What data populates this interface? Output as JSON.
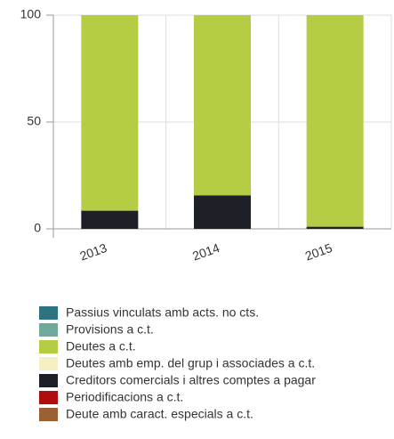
{
  "chart_data": {
    "type": "stacked_bar",
    "categories": [
      "2013",
      "2014",
      "2015"
    ],
    "series": [
      {
        "name": "Passius vinculats amb acts. no cts.",
        "color": "#2e7480",
        "values": [
          0,
          0,
          0
        ]
      },
      {
        "name": "Provisions a c.t.",
        "color": "#6fa99b",
        "values": [
          0,
          0,
          0
        ]
      },
      {
        "name": "Deutes a c.t.",
        "color": "#b5cc45",
        "values": [
          91.5,
          84.3,
          99
        ]
      },
      {
        "name": "Deutes amb emp. del grup i associades a c.t.",
        "color": "#f5eec2",
        "values": [
          0,
          0,
          0
        ]
      },
      {
        "name": "Creditors comercials i altres comptes a pagar",
        "color": "#1e2027",
        "values": [
          8.5,
          15.7,
          1
        ]
      },
      {
        "name": "Periodificacions a c.t.",
        "color": "#b00d0d",
        "values": [
          0,
          0,
          0
        ]
      },
      {
        "name": "Deute amb caract. especials a c.t.",
        "color": "#9a6234",
        "values": [
          0,
          0,
          0
        ]
      }
    ],
    "ylim": [
      0,
      100
    ],
    "yticks": [
      0,
      50,
      100
    ],
    "grid": true,
    "legend": "bottom"
  }
}
